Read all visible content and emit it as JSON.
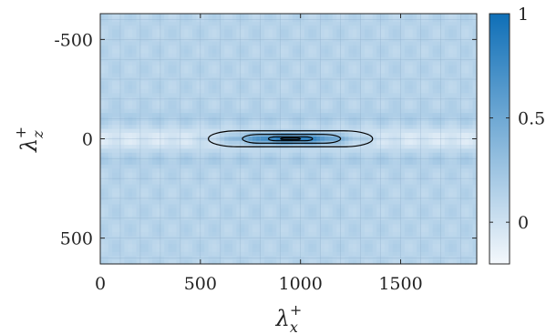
{
  "chart_data": {
    "type": "heatmap",
    "title": "",
    "xlabel": "λx+",
    "ylabel": "λz+",
    "xlim": [
      0,
      1880
    ],
    "ylim": [
      -630,
      630
    ],
    "y_reversed": true,
    "grid": true,
    "x_ticks": [
      0,
      500,
      1000,
      1500
    ],
    "x_tick_labels": [
      "0",
      "500",
      "1000",
      "1500"
    ],
    "y_ticks": [
      -500,
      0,
      500
    ],
    "y_tick_labels": [
      "-500",
      "0",
      "500"
    ],
    "colorbar": {
      "range": [
        -0.2,
        1
      ],
      "ticks": [
        0,
        0.5,
        1
      ],
      "tick_labels": [
        "0",
        "0.5",
        "1"
      ],
      "colormap": [
        "#f4f8fc",
        "#0f6fb7"
      ]
    },
    "peak": {
      "x": 950,
      "y": 0,
      "value": 1
    },
    "background_value": 0.12,
    "contours": [
      {
        "level": 0.2,
        "x_range": [
          540,
          1360
        ],
        "z_half_width": 40
      },
      {
        "level": 0.5,
        "x_range": [
          710,
          1200
        ],
        "z_half_width": 22
      },
      {
        "level": 0.8,
        "x_range": [
          840,
          1060
        ],
        "z_half_width": 10
      },
      {
        "level": 0.95,
        "x_range": [
          900,
          1000
        ],
        "z_half_width": 4
      }
    ],
    "colors": {
      "axis": "#262626",
      "grid": "#8aa9c6",
      "contour": "#000000"
    }
  }
}
